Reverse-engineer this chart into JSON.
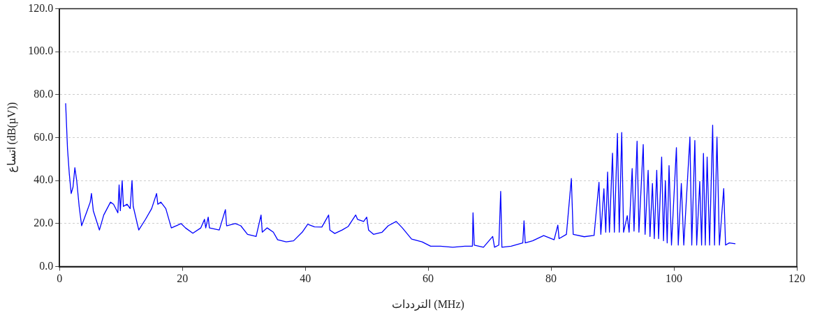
{
  "chart_data": {
    "type": "line",
    "xlabel": "الترددات (MHz)",
    "ylabel": "اتساع (dB(µV))",
    "xlim": [
      0,
      120
    ],
    "xticks": [
      0,
      20,
      40,
      60,
      80,
      100,
      120
    ],
    "ylim": [
      0,
      120
    ],
    "yticks": [
      {
        "value": 0,
        "label": "0.0"
      },
      {
        "value": 20,
        "label": "20.0"
      },
      {
        "value": 40,
        "label": "40.0"
      },
      {
        "value": 60,
        "label": "60.0"
      },
      {
        "value": 80,
        "label": "80.0"
      },
      {
        "value": 100,
        "label": "100.0"
      },
      {
        "value": 120,
        "label": "120.0"
      }
    ],
    "grid": "y",
    "legend": false,
    "marker": "none",
    "line_style": "solid",
    "series": [
      {
        "color": "#0000ff",
        "x": [
          1.0,
          1.3,
          1.6,
          1.9,
          2.2,
          2.5,
          2.8,
          3.2,
          3.6,
          4.5,
          5.0,
          5.2,
          5.5,
          6.5,
          7.2,
          8.3,
          8.8,
          9.5,
          9.7,
          9.9,
          10.2,
          10.4,
          11.0,
          11.5,
          11.8,
          12.0,
          12.9,
          14.0,
          15.0,
          15.8,
          16.0,
          16.5,
          17.3,
          18.2,
          19.8,
          20.5,
          21.7,
          23.0,
          23.6,
          23.8,
          24.2,
          24.4,
          26.0,
          27.0,
          27.2,
          28.6,
          29.5,
          30.6,
          32.0,
          32.8,
          33.0,
          33.8,
          34.8,
          35.5,
          36.9,
          38.1,
          39.5,
          40.4,
          41.5,
          42.7,
          43.8,
          44.0,
          44.8,
          46.0,
          47.0,
          48.2,
          48.5,
          49.5,
          50.0,
          50.3,
          51.1,
          52.5,
          53.5,
          54.8,
          55.8,
          57.3,
          59.0,
          60.4,
          62.0,
          64.0,
          66.0,
          67.2,
          67.3,
          67.5,
          69.0,
          70.5,
          70.8,
          71.5,
          71.8,
          72.0,
          73.5,
          75.4,
          75.6,
          75.8,
          77.0,
          78.8,
          80.5,
          81.1,
          81.3,
          82.5,
          83.3,
          83.6,
          85.4,
          87.0,
          87.8,
          88.1,
          88.6,
          88.9,
          89.2,
          89.5,
          90.0,
          90.3,
          90.8,
          91.1,
          91.5,
          91.8,
          92.4,
          92.7,
          93.2,
          93.5,
          94.0,
          94.3,
          95.0,
          95.3,
          95.8,
          96.1,
          96.5,
          96.8,
          97.2,
          97.5,
          98.0,
          98.3,
          98.6,
          98.9,
          99.2,
          99.6,
          100.4,
          100.7,
          101.2,
          101.6,
          102.6,
          102.9,
          103.4,
          103.7,
          104.2,
          104.5,
          104.8,
          105.1,
          105.4,
          105.8,
          106.3,
          106.6,
          107.0,
          107.4,
          108.1,
          108.4,
          109.0,
          110.0
        ],
        "values": [
          76,
          55,
          43,
          34,
          37,
          46,
          40,
          28,
          19,
          26,
          30,
          34,
          26,
          17,
          24,
          30,
          29,
          25,
          38,
          26,
          40,
          28,
          29,
          27,
          40,
          28,
          17,
          22,
          27,
          34,
          29,
          30,
          27,
          18,
          20,
          18,
          15.5,
          18,
          22,
          18,
          23,
          18,
          17,
          26.5,
          19,
          20,
          19,
          15,
          14,
          24,
          16,
          18,
          16,
          12.5,
          11.5,
          12,
          16,
          19.7,
          18.5,
          18.4,
          24,
          17,
          15.4,
          17,
          18.7,
          24,
          22,
          21,
          23,
          17,
          15,
          16,
          19,
          21,
          18,
          12.8,
          11.5,
          9.5,
          9.5,
          9,
          9.5,
          9.5,
          25,
          10,
          9,
          14,
          9,
          10,
          35,
          9,
          9.5,
          11,
          21.3,
          11,
          12,
          14.4,
          12.5,
          19.3,
          13,
          15,
          41,
          15,
          13.9,
          14.5,
          39.2,
          15,
          36.2,
          16,
          44,
          16,
          52.8,
          16,
          62,
          16,
          62.4,
          16,
          23.7,
          16,
          45.6,
          16.5,
          58.4,
          16,
          56.8,
          15,
          44.8,
          14,
          38.7,
          13,
          44.8,
          13,
          51,
          12,
          40,
          11,
          47,
          10,
          55.4,
          10,
          38.7,
          10,
          60.3,
          10,
          58.7,
          10,
          39.6,
          10,
          52.7,
          10,
          51,
          10,
          65.8,
          10,
          60.3,
          10,
          36.3,
          10,
          11,
          10.6
        ]
      }
    ]
  }
}
